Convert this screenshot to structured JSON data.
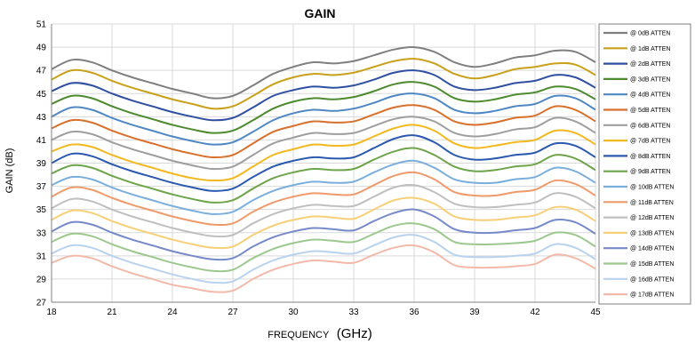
{
  "chart_data": {
    "type": "line",
    "title": "GAIN",
    "xlabel_prefix": "FREQUENCY",
    "xlabel_unit": "(GHz)",
    "ylabel": "GAIN (dB)",
    "xlim": [
      18,
      45
    ],
    "ylim": [
      27,
      51
    ],
    "xticks": [
      18,
      21,
      24,
      27,
      30,
      33,
      36,
      39,
      42,
      45
    ],
    "yticks": [
      27,
      29,
      31,
      33,
      35,
      37,
      39,
      41,
      43,
      45,
      47,
      49,
      51
    ],
    "grid": true,
    "legend_position": "right",
    "x": [
      18,
      19,
      20,
      21,
      22,
      23,
      24,
      25,
      26,
      27,
      28,
      29,
      30,
      31,
      32,
      33,
      34,
      35,
      36,
      37,
      38,
      39,
      40,
      41,
      42,
      43,
      44,
      45
    ],
    "series": [
      {
        "name": "@ 0dB ATTEN",
        "color": "#7f7f7f",
        "values": [
          47.1,
          47.9,
          47.7,
          47.0,
          46.4,
          45.9,
          45.4,
          45.0,
          44.6,
          44.8,
          45.7,
          46.7,
          47.3,
          47.7,
          47.6,
          47.8,
          48.3,
          48.8,
          49.0,
          48.6,
          47.7,
          47.3,
          47.6,
          48.1,
          48.3,
          48.7,
          48.6,
          47.7
        ]
      },
      {
        "name": "@ 1dB ATTEN",
        "color": "#c9a01a",
        "values": [
          46.2,
          47.0,
          46.8,
          46.1,
          45.5,
          45.0,
          44.5,
          44.1,
          43.7,
          43.9,
          44.8,
          45.8,
          46.4,
          46.7,
          46.6,
          46.8,
          47.3,
          47.8,
          48.0,
          47.6,
          46.7,
          46.3,
          46.6,
          47.1,
          47.3,
          47.6,
          47.5,
          46.6
        ]
      },
      {
        "name": "@ 2dB ATTEN",
        "color": "#2f4fa0",
        "values": [
          45.2,
          45.9,
          45.7,
          45.0,
          44.4,
          43.9,
          43.4,
          43.0,
          42.7,
          42.9,
          43.8,
          44.8,
          45.3,
          45.6,
          45.5,
          45.7,
          46.2,
          46.8,
          47.0,
          46.6,
          45.6,
          45.3,
          45.5,
          45.9,
          46.1,
          46.6,
          46.4,
          45.5
        ]
      },
      {
        "name": "@ 3dB ATTEN",
        "color": "#4c8a2e",
        "values": [
          44.1,
          44.8,
          44.6,
          43.9,
          43.3,
          42.8,
          42.3,
          41.9,
          41.6,
          41.8,
          42.7,
          43.7,
          44.3,
          44.6,
          44.5,
          44.7,
          45.2,
          45.8,
          46.0,
          45.6,
          44.6,
          44.3,
          44.5,
          44.9,
          45.1,
          45.6,
          45.4,
          44.5
        ]
      },
      {
        "name": "@ 4dB ATTEN",
        "color": "#4f87c4",
        "values": [
          43.0,
          43.8,
          43.6,
          42.9,
          42.3,
          41.8,
          41.3,
          40.9,
          40.6,
          40.8,
          41.7,
          42.7,
          43.3,
          43.6,
          43.5,
          43.7,
          44.2,
          44.8,
          45.0,
          44.6,
          43.6,
          43.3,
          43.5,
          43.9,
          44.1,
          44.8,
          44.6,
          43.6
        ]
      },
      {
        "name": "@ 5dB ATTEN",
        "color": "#d8702c",
        "values": [
          42.0,
          42.7,
          42.5,
          41.8,
          41.2,
          40.7,
          40.2,
          39.8,
          39.5,
          39.7,
          40.7,
          41.7,
          42.2,
          42.6,
          42.5,
          42.6,
          43.2,
          43.8,
          44.0,
          43.6,
          42.6,
          42.3,
          42.5,
          42.9,
          43.1,
          43.9,
          43.6,
          42.6
        ]
      },
      {
        "name": "@ 6dB ATTEN",
        "color": "#9e9e9e",
        "values": [
          41.0,
          41.7,
          41.5,
          40.8,
          40.2,
          39.7,
          39.2,
          38.8,
          38.5,
          38.7,
          39.7,
          40.7,
          41.2,
          41.6,
          41.5,
          41.6,
          42.2,
          42.8,
          43.0,
          42.6,
          41.6,
          41.3,
          41.5,
          41.9,
          42.1,
          42.9,
          42.6,
          41.6
        ]
      },
      {
        "name": "@ 7dB ATTEN",
        "color": "#f2b81e",
        "values": [
          40.0,
          40.6,
          40.4,
          39.7,
          39.1,
          38.6,
          38.1,
          37.7,
          37.5,
          37.7,
          38.7,
          39.7,
          40.2,
          40.6,
          40.5,
          40.6,
          41.3,
          42.0,
          42.3,
          41.8,
          40.7,
          40.3,
          40.5,
          40.8,
          41.0,
          41.8,
          41.6,
          40.6
        ]
      },
      {
        "name": "@ 8dB ATTEN",
        "color": "#2b59b0",
        "values": [
          39.0,
          39.8,
          39.6,
          38.9,
          38.3,
          37.8,
          37.3,
          36.9,
          36.6,
          36.8,
          37.8,
          38.7,
          39.2,
          39.5,
          39.4,
          39.5,
          40.3,
          41.1,
          41.4,
          40.8,
          39.7,
          39.3,
          39.4,
          39.7,
          39.9,
          40.7,
          40.5,
          39.5
        ]
      },
      {
        "name": "@ 9dB ATTEN",
        "color": "#6ea44a",
        "values": [
          38.1,
          38.8,
          38.6,
          37.9,
          37.3,
          36.8,
          36.3,
          35.9,
          35.6,
          35.8,
          36.8,
          37.7,
          38.2,
          38.5,
          38.4,
          38.5,
          39.3,
          40.0,
          40.3,
          39.7,
          38.7,
          38.3,
          38.4,
          38.7,
          38.9,
          39.7,
          39.4,
          38.4
        ]
      },
      {
        "name": "@ 10dB ATTEN",
        "color": "#7aaedc",
        "values": [
          37.1,
          37.8,
          37.6,
          36.9,
          36.3,
          35.8,
          35.3,
          34.9,
          34.6,
          34.8,
          35.8,
          36.6,
          37.1,
          37.4,
          37.3,
          37.4,
          38.2,
          38.9,
          39.2,
          38.6,
          37.6,
          37.3,
          37.3,
          37.6,
          37.8,
          38.6,
          38.3,
          37.3
        ]
      },
      {
        "name": "@ 11dB ATTEN",
        "color": "#ef9a6a",
        "values": [
          36.1,
          36.9,
          36.7,
          36.0,
          35.4,
          34.9,
          34.4,
          34.0,
          33.7,
          33.8,
          34.8,
          35.6,
          36.1,
          36.4,
          36.3,
          36.3,
          37.1,
          37.9,
          38.2,
          37.6,
          36.5,
          36.2,
          36.2,
          36.5,
          36.7,
          37.5,
          37.2,
          36.2
        ]
      },
      {
        "name": "@ 12dB ATTEN",
        "color": "#bfbfbf",
        "values": [
          35.1,
          35.9,
          35.7,
          35.0,
          34.4,
          33.9,
          33.4,
          33.0,
          32.7,
          32.8,
          33.8,
          34.6,
          35.1,
          35.4,
          35.3,
          35.3,
          36.1,
          36.9,
          37.1,
          36.5,
          35.5,
          35.2,
          35.2,
          35.4,
          35.6,
          36.4,
          36.1,
          35.1
        ]
      },
      {
        "name": "@ 13dB ATTEN",
        "color": "#f7cf77",
        "values": [
          34.1,
          34.9,
          34.7,
          34.0,
          33.4,
          32.9,
          32.4,
          32.0,
          31.7,
          31.8,
          32.8,
          33.6,
          34.1,
          34.4,
          34.3,
          34.2,
          35.0,
          35.8,
          36.0,
          35.5,
          34.4,
          34.1,
          34.1,
          34.3,
          34.5,
          35.2,
          35.0,
          34.0
        ]
      },
      {
        "name": "@ 14dB ATTEN",
        "color": "#7689c9",
        "values": [
          33.1,
          33.9,
          33.7,
          33.0,
          32.4,
          31.9,
          31.4,
          31.0,
          30.7,
          30.8,
          31.8,
          32.6,
          33.1,
          33.4,
          33.3,
          33.2,
          34.0,
          34.7,
          35.0,
          34.4,
          33.3,
          33.0,
          33.0,
          33.2,
          33.4,
          34.1,
          33.9,
          32.9
        ]
      },
      {
        "name": "@ 15dB ATTEN",
        "color": "#9cc88e",
        "values": [
          32.2,
          32.9,
          32.7,
          32.0,
          31.4,
          30.9,
          30.4,
          30.0,
          29.7,
          29.8,
          30.8,
          31.6,
          32.1,
          32.4,
          32.3,
          32.2,
          32.9,
          33.6,
          33.8,
          33.3,
          32.2,
          32.0,
          32.0,
          32.1,
          32.3,
          33.0,
          32.8,
          31.8
        ]
      },
      {
        "name": "@ 16dB ATTEN",
        "color": "#b9d2ee",
        "values": [
          31.2,
          31.9,
          31.7,
          31.0,
          30.4,
          29.9,
          29.4,
          29.0,
          28.7,
          28.8,
          29.8,
          30.6,
          31.1,
          31.4,
          31.3,
          31.2,
          31.9,
          32.6,
          32.8,
          32.2,
          31.1,
          30.9,
          30.9,
          31.0,
          31.2,
          32.0,
          31.7,
          30.7
        ]
      },
      {
        "name": "@ 17dB ATTEN",
        "color": "#f3b9a8",
        "values": [
          30.4,
          31.0,
          30.8,
          30.1,
          29.5,
          29.0,
          28.5,
          28.2,
          27.9,
          28.0,
          29.0,
          29.8,
          30.3,
          30.6,
          30.5,
          30.4,
          31.1,
          31.7,
          31.9,
          31.3,
          30.2,
          30.0,
          30.0,
          30.1,
          30.3,
          31.1,
          30.8,
          29.9
        ]
      }
    ]
  }
}
